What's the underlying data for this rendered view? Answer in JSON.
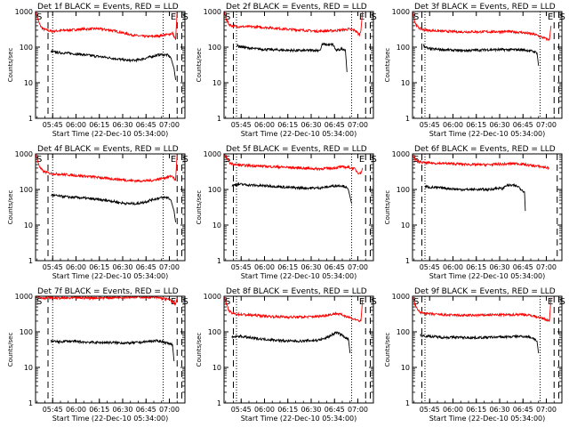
{
  "chart_data": [
    {
      "type": "line",
      "title": "Det 1f BLACK = Events, RED = LLD",
      "xlabel": "Start Time (22-Dec-10 05:34:00)",
      "ylabel": "Counts/sec",
      "y_scale": "log",
      "ylim": [
        1,
        1000
      ],
      "y_ticks": [
        "1",
        "10",
        "100",
        "1000"
      ],
      "xlim_minutes": [
        0,
        96
      ],
      "x_ticks": [
        "05:45",
        "06:00",
        "06:15",
        "06:30",
        "06:45",
        "07:00"
      ],
      "markers": {
        "S": "05:34",
        "E": "07:05",
        "S_right": "07:08"
      },
      "dashed_lines": [
        "05:42",
        "07:05",
        "07:08"
      ],
      "dotted_lines": [
        "05:45",
        "06:56"
      ],
      "series": [
        {
          "color": "#ff0000",
          "x": [
            0,
            1.5,
            3,
            5,
            10,
            20,
            30,
            40,
            48,
            55,
            60,
            65,
            70,
            75,
            80,
            86,
            88,
            89,
            90,
            91
          ],
          "values": [
            1000,
            600,
            400,
            320,
            280,
            300,
            320,
            330,
            300,
            260,
            230,
            210,
            200,
            200,
            210,
            230,
            250,
            200,
            160,
            1000
          ]
        },
        {
          "color": "#000000",
          "x": [
            10,
            15,
            20,
            30,
            40,
            48,
            55,
            60,
            65,
            70,
            75,
            80,
            85,
            87,
            89,
            90
          ],
          "values": [
            75,
            70,
            68,
            62,
            55,
            50,
            45,
            42,
            43,
            48,
            55,
            62,
            60,
            50,
            25,
            12
          ]
        }
      ]
    },
    {
      "type": "line",
      "title": "Det 2f BLACK = Events, RED = LLD",
      "xlabel": "Start Time (22-Dec-10 05:34:00)",
      "ylabel": "Counts/sec",
      "y_scale": "log",
      "ylim": [
        1,
        1000
      ],
      "y_ticks": [
        "1",
        "10",
        "100",
        "1000"
      ],
      "xlim_minutes": [
        0,
        96
      ],
      "x_ticks": [
        "05:45",
        "06:00",
        "06:15",
        "06:30",
        "06:45",
        "07:00"
      ],
      "markers": {
        "S": "05:34",
        "E": "07:05",
        "S_right": "07:08"
      },
      "dashed_lines": [
        "05:40",
        "07:05",
        "07:08"
      ],
      "dotted_lines": [
        "05:42",
        "06:56"
      ],
      "series": [
        {
          "color": "#ff0000",
          "x": [
            0,
            1.5,
            3,
            5,
            8,
            20,
            30,
            40,
            50,
            60,
            70,
            75,
            80,
            84,
            86,
            87,
            88,
            89
          ],
          "values": [
            1000,
            600,
            450,
            400,
            380,
            370,
            350,
            320,
            300,
            280,
            290,
            300,
            320,
            300,
            250,
            220,
            300,
            1000
          ]
        },
        {
          "color": "#000000",
          "x": [
            8,
            15,
            20,
            30,
            40,
            50,
            60,
            62,
            63,
            68,
            70,
            72,
            76,
            78,
            79
          ],
          "values": [
            110,
            95,
            90,
            85,
            82,
            80,
            82,
            83,
            120,
            115,
            120,
            80,
            90,
            85,
            20
          ]
        }
      ]
    },
    {
      "type": "line",
      "title": "Det 3f BLACK = Events, RED = LLD",
      "xlabel": "Start Time (22-Dec-10 05:34:00)",
      "ylabel": "Counts/sec",
      "y_scale": "log",
      "ylim": [
        1,
        1000
      ],
      "y_ticks": [
        "1",
        "10",
        "100",
        "1000"
      ],
      "xlim_minutes": [
        0,
        96
      ],
      "x_ticks": [
        "05:45",
        "06:00",
        "06:15",
        "06:30",
        "06:45",
        "07:00"
      ],
      "markers": {
        "S": "05:34",
        "E": "07:05",
        "S_right": "07:08"
      },
      "dashed_lines": [
        "05:40",
        "07:05",
        "07:08"
      ],
      "dotted_lines": [
        "05:42",
        "06:56"
      ],
      "series": [
        {
          "color": "#ff0000",
          "x": [
            0,
            1.5,
            3,
            5,
            8,
            20,
            30,
            40,
            50,
            60,
            70,
            78,
            82,
            86,
            88,
            89
          ],
          "values": [
            1000,
            500,
            380,
            330,
            300,
            280,
            270,
            270,
            270,
            275,
            260,
            230,
            200,
            170,
            160,
            400
          ]
        },
        {
          "color": "#000000",
          "x": [
            7,
            10,
            20,
            30,
            40,
            50,
            60,
            70,
            75,
            78,
            80,
            81
          ],
          "values": [
            110,
            90,
            85,
            80,
            82,
            85,
            85,
            85,
            80,
            75,
            70,
            30
          ]
        }
      ]
    },
    {
      "type": "line",
      "title": "Det 4f BLACK = Events, RED = LLD",
      "xlabel": "Start Time (22-Dec-10 05:34:00)",
      "ylabel": "Counts/sec",
      "y_scale": "log",
      "ylim": [
        1,
        1000
      ],
      "y_ticks": [
        "1",
        "10",
        "100",
        "1000"
      ],
      "xlim_minutes": [
        0,
        96
      ],
      "x_ticks": [
        "05:45",
        "06:00",
        "06:15",
        "06:30",
        "06:45",
        "07:00"
      ],
      "markers": {
        "S": "05:34",
        "E": "07:05",
        "S_right": "07:08"
      },
      "dashed_lines": [
        "05:42",
        "07:05",
        "07:08"
      ],
      "dotted_lines": [
        "05:45",
        "06:56"
      ],
      "series": [
        {
          "color": "#ff0000",
          "x": [
            0,
            1.5,
            3,
            5,
            10,
            20,
            30,
            40,
            48,
            55,
            60,
            65,
            70,
            75,
            80,
            86,
            88,
            89,
            90,
            91
          ],
          "values": [
            1000,
            600,
            400,
            320,
            280,
            260,
            240,
            220,
            200,
            190,
            180,
            175,
            175,
            180,
            200,
            230,
            240,
            200,
            180,
            1000
          ]
        },
        {
          "color": "#000000",
          "x": [
            10,
            15,
            20,
            30,
            40,
            48,
            55,
            60,
            65,
            70,
            75,
            80,
            85,
            87,
            89,
            90
          ],
          "values": [
            70,
            65,
            62,
            58,
            52,
            48,
            42,
            40,
            40,
            44,
            52,
            58,
            60,
            50,
            25,
            12
          ]
        }
      ]
    },
    {
      "type": "line",
      "title": "Det 5f BLACK = Events, RED = LLD",
      "xlabel": "Start Time (22-Dec-10 05:34:00)",
      "ylabel": "Counts/sec",
      "y_scale": "log",
      "ylim": [
        1,
        1000
      ],
      "y_ticks": [
        "1",
        "10",
        "100",
        "1000"
      ],
      "xlim_minutes": [
        0,
        96
      ],
      "x_ticks": [
        "05:45",
        "06:00",
        "06:15",
        "06:30",
        "06:45",
        "07:00"
      ],
      "markers": {
        "S": "05:34",
        "E": "07:05",
        "S_right": "07:08"
      },
      "dashed_lines": [
        "05:40",
        "07:05",
        "07:08"
      ],
      "dotted_lines": [
        "05:42",
        "06:56"
      ],
      "series": [
        {
          "color": "#ff0000",
          "x": [
            0,
            1.5,
            3,
            5,
            10,
            20,
            30,
            40,
            50,
            60,
            70,
            75,
            80,
            84,
            86,
            88,
            89
          ],
          "values": [
            1000,
            800,
            600,
            520,
            480,
            460,
            440,
            420,
            400,
            380,
            400,
            430,
            420,
            380,
            300,
            280,
            400
          ]
        },
        {
          "color": "#000000",
          "x": [
            5,
            10,
            20,
            30,
            40,
            50,
            60,
            65,
            70,
            75,
            78,
            80,
            82
          ],
          "values": [
            130,
            140,
            130,
            125,
            115,
            110,
            110,
            115,
            125,
            130,
            120,
            95,
            40
          ]
        }
      ]
    },
    {
      "type": "line",
      "title": "Det 6f BLACK = Events, RED = LLD",
      "xlabel": "Start Time (22-Dec-10 05:34:00)",
      "ylabel": "Counts/sec",
      "y_scale": "log",
      "ylim": [
        1,
        1000
      ],
      "y_ticks": [
        "1",
        "10",
        "100",
        "1000"
      ],
      "xlim_minutes": [
        0,
        96
      ],
      "x_ticks": [
        "05:45",
        "06:00",
        "06:15",
        "06:30",
        "06:45",
        "07:00"
      ],
      "markers": {
        "S": "05:34"
      },
      "dashed_lines": [
        "05:40",
        "07:07"
      ],
      "dotted_lines": [
        "05:42"
      ],
      "series": [
        {
          "color": "#ff0000",
          "x": [
            0,
            1,
            2,
            4,
            8,
            20,
            30,
            40,
            50,
            60,
            65,
            70,
            75,
            80,
            85,
            88
          ],
          "values": [
            1000,
            800,
            650,
            600,
            560,
            540,
            520,
            500,
            500,
            520,
            540,
            520,
            480,
            450,
            420,
            400
          ]
        },
        {
          "color": "#000000",
          "x": [
            8,
            12,
            20,
            30,
            40,
            50,
            55,
            58,
            60,
            65,
            68,
            70,
            72,
            72.5
          ],
          "values": [
            120,
            115,
            110,
            100,
            100,
            100,
            110,
            105,
            130,
            130,
            120,
            100,
            85,
            25
          ]
        }
      ]
    },
    {
      "type": "line",
      "title": "Det 7f BLACK = Events, RED = LLD",
      "xlabel": "Start Time (22-Dec-10 05:34:00)",
      "ylabel": "Counts/sec",
      "y_scale": "log",
      "ylim": [
        1,
        1000
      ],
      "y_ticks": [
        "1",
        "10",
        "100",
        "1000"
      ],
      "xlim_minutes": [
        0,
        96
      ],
      "x_ticks": [
        "05:45",
        "06:00",
        "06:15",
        "06:30",
        "06:45",
        "07:00"
      ],
      "markers": {
        "S": "05:34",
        "E": "07:05",
        "S_right": "07:08"
      },
      "dashed_lines": [
        "05:42",
        "07:05",
        "07:08"
      ],
      "dotted_lines": [
        "05:45",
        "06:56"
      ],
      "series": [
        {
          "color": "#ff0000",
          "x": [
            0,
            2,
            5,
            10,
            20,
            30,
            40,
            50,
            60,
            70,
            80,
            86,
            88,
            90,
            91
          ],
          "values": [
            1000,
            950,
            900,
            900,
            880,
            900,
            900,
            920,
            950,
            950,
            900,
            800,
            700,
            600,
            900
          ]
        },
        {
          "color": "#000000",
          "x": [
            10,
            15,
            20,
            30,
            40,
            50,
            60,
            70,
            75,
            80,
            85,
            88,
            89
          ],
          "values": [
            55,
            52,
            55,
            52,
            50,
            50,
            48,
            52,
            55,
            55,
            48,
            45,
            15
          ]
        }
      ]
    },
    {
      "type": "line",
      "title": "Det 8f BLACK = Events, RED = LLD",
      "xlabel": "Start Time (22-Dec-10 05:34:00)",
      "ylabel": "Counts/sec",
      "y_scale": "log",
      "ylim": [
        1,
        1000
      ],
      "y_ticks": [
        "1",
        "10",
        "100",
        "1000"
      ],
      "xlim_minutes": [
        0,
        96
      ],
      "x_ticks": [
        "05:45",
        "06:00",
        "06:15",
        "06:30",
        "06:45",
        "07:00"
      ],
      "markers": {
        "S": "05:34",
        "E": "07:05",
        "S_right": "07:08"
      },
      "dashed_lines": [
        "05:40",
        "07:05",
        "07:08"
      ],
      "dotted_lines": [
        "05:42",
        "06:56"
      ],
      "series": [
        {
          "color": "#ff0000",
          "x": [
            0,
            1.5,
            3,
            5,
            10,
            20,
            30,
            40,
            50,
            60,
            68,
            72,
            78,
            82,
            86,
            88,
            89
          ],
          "values": [
            1000,
            600,
            400,
            330,
            310,
            290,
            270,
            260,
            260,
            270,
            300,
            330,
            280,
            240,
            210,
            200,
            800
          ]
        },
        {
          "color": "#000000",
          "x": [
            5,
            10,
            20,
            30,
            40,
            50,
            60,
            65,
            70,
            72,
            75,
            78,
            80,
            81
          ],
          "values": [
            70,
            75,
            65,
            60,
            55,
            55,
            58,
            65,
            85,
            95,
            85,
            70,
            60,
            25
          ]
        }
      ]
    },
    {
      "type": "line",
      "title": "Det 9f BLACK = Events, RED = LLD",
      "xlabel": "Start Time (22-Dec-10 05:34:00)",
      "ylabel": "Counts/sec",
      "y_scale": "log",
      "ylim": [
        1,
        1000
      ],
      "y_ticks": [
        "1",
        "10",
        "100",
        "1000"
      ],
      "xlim_minutes": [
        0,
        96
      ],
      "x_ticks": [
        "05:45",
        "06:00",
        "06:15",
        "06:30",
        "06:45",
        "07:00"
      ],
      "markers": {
        "S": "05:34",
        "E": "07:05",
        "S_right": "07:08"
      },
      "dashed_lines": [
        "05:40",
        "07:05",
        "07:08"
      ],
      "dotted_lines": [
        "05:42",
        "06:56"
      ],
      "series": [
        {
          "color": "#ff0000",
          "x": [
            0,
            1.5,
            3,
            5,
            10,
            20,
            30,
            40,
            50,
            60,
            70,
            78,
            82,
            86,
            88,
            89
          ],
          "values": [
            1000,
            600,
            420,
            350,
            320,
            300,
            290,
            290,
            300,
            300,
            310,
            280,
            250,
            220,
            200,
            900
          ]
        },
        {
          "color": "#000000",
          "x": [
            5,
            10,
            20,
            30,
            40,
            50,
            60,
            70,
            75,
            78,
            80,
            81
          ],
          "values": [
            80,
            75,
            70,
            70,
            68,
            70,
            72,
            75,
            72,
            65,
            55,
            25
          ]
        }
      ]
    }
  ]
}
